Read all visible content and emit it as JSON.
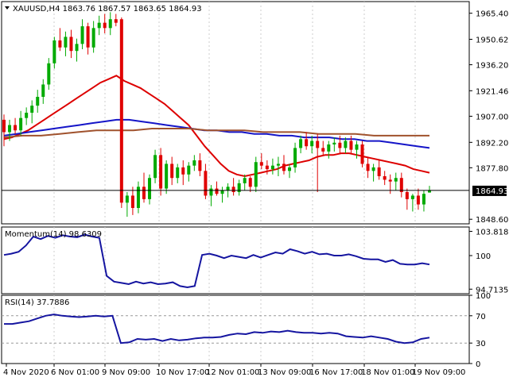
{
  "main_header": "XAUUSD,H4  1863.76 1867.57 1863.65 1864.93",
  "price_tag": "1864.93",
  "momentum_header": "Momentum(14) 98.6309",
  "rsi_header": "RSI(14) 37.7886",
  "colors": {
    "bull": "#00aa00",
    "bear": "#e00000",
    "ma_fast": "#dd0000",
    "ma_mid": "#1515c8",
    "ma_slow": "#a0522d",
    "indicator": "#1515a0",
    "grid": "#cccccc",
    "axis": "#000000"
  },
  "chart_data": [
    {
      "type": "candlestick",
      "title": "XAUUSD,H4",
      "ylim": [
        1846.0,
        1972.0
      ],
      "y_ticks": [
        "1965.40",
        "1950.62",
        "1936.20",
        "1921.46",
        "1907.00",
        "1892.20",
        "1877.80",
        "1848.60"
      ],
      "last_price": 1864.93,
      "x_ticks": [
        "4 Nov 2020",
        "6 Nov 01:00",
        "9 Nov 09:00",
        "10 Nov 17:00",
        "12 Nov 01:00",
        "13 Nov 09:00",
        "16 Nov 17:00",
        "18 Nov 01:00",
        "19 Nov 09:00"
      ],
      "candles": [
        [
          1905,
          1908,
          1890,
          1898
        ],
        [
          1898,
          1905,
          1893,
          1902
        ],
        [
          1902,
          1906,
          1897,
          1899
        ],
        [
          1899,
          1910,
          1896,
          1906
        ],
        [
          1906,
          1912,
          1902,
          1909
        ],
        [
          1909,
          1916,
          1903,
          1913
        ],
        [
          1913,
          1922,
          1909,
          1918
        ],
        [
          1918,
          1928,
          1914,
          1925
        ],
        [
          1925,
          1940,
          1922,
          1937
        ],
        [
          1937,
          1952,
          1934,
          1950
        ],
        [
          1950,
          1957,
          1944,
          1946
        ],
        [
          1946,
          1955,
          1941,
          1952
        ],
        [
          1952,
          1956,
          1940,
          1944
        ],
        [
          1944,
          1951,
          1938,
          1948
        ],
        [
          1948,
          1962,
          1945,
          1958
        ],
        [
          1958,
          1960,
          1942,
          1946
        ],
        [
          1946,
          1961,
          1943,
          1957
        ],
        [
          1957,
          1964,
          1953,
          1960
        ],
        [
          1960,
          1965,
          1954,
          1957
        ],
        [
          1957,
          1966,
          1953,
          1962
        ],
        [
          1962,
          1965,
          1958,
          1960
        ],
        [
          1962,
          1963,
          1855,
          1858
        ],
        [
          1858,
          1864,
          1850,
          1862
        ],
        [
          1862,
          1867,
          1851,
          1855
        ],
        [
          1855,
          1870,
          1852,
          1867
        ],
        [
          1867,
          1875,
          1858,
          1860
        ],
        [
          1860,
          1874,
          1857,
          1872
        ],
        [
          1872,
          1888,
          1869,
          1885
        ],
        [
          1885,
          1889,
          1862,
          1866
        ],
        [
          1866,
          1882,
          1863,
          1880
        ],
        [
          1880,
          1884,
          1868,
          1872
        ],
        [
          1872,
          1880,
          1869,
          1878
        ],
        [
          1878,
          1882,
          1868,
          1874
        ],
        [
          1874,
          1881,
          1870,
          1879
        ],
        [
          1879,
          1885,
          1876,
          1882
        ],
        [
          1882,
          1886,
          1873,
          1876
        ],
        [
          1876,
          1880,
          1860,
          1862
        ],
        [
          1862,
          1868,
          1856,
          1866
        ],
        [
          1866,
          1870,
          1862,
          1863
        ],
        [
          1863,
          1867,
          1858,
          1865
        ],
        [
          1865,
          1869,
          1861,
          1867
        ],
        [
          1867,
          1872,
          1862,
          1864
        ],
        [
          1864,
          1871,
          1862,
          1869
        ],
        [
          1869,
          1874,
          1865,
          1872
        ],
        [
          1872,
          1873,
          1864,
          1867
        ],
        [
          1867,
          1884,
          1864,
          1881
        ],
        [
          1881,
          1886,
          1877,
          1879
        ],
        [
          1879,
          1882,
          1874,
          1877
        ],
        [
          1877,
          1883,
          1874,
          1879
        ],
        [
          1879,
          1884,
          1873,
          1880
        ],
        [
          1880,
          1885,
          1874,
          1876
        ],
        [
          1876,
          1880,
          1872,
          1878
        ],
        [
          1878,
          1892,
          1875,
          1889
        ],
        [
          1889,
          1896,
          1886,
          1894
        ],
        [
          1894,
          1898,
          1888,
          1890
        ],
        [
          1890,
          1896,
          1886,
          1893
        ],
        [
          1893,
          1897,
          1864,
          1889
        ],
        [
          1889,
          1893,
          1885,
          1887
        ],
        [
          1887,
          1893,
          1883,
          1891
        ],
        [
          1891,
          1895,
          1887,
          1892
        ],
        [
          1892,
          1896,
          1886,
          1889
        ],
        [
          1889,
          1895,
          1886,
          1893
        ],
        [
          1893,
          1896,
          1886,
          1888
        ],
        [
          1888,
          1893,
          1883,
          1891
        ],
        [
          1891,
          1893,
          1878,
          1880
        ],
        [
          1880,
          1884,
          1872,
          1876
        ],
        [
          1876,
          1880,
          1870,
          1878
        ],
        [
          1878,
          1882,
          1871,
          1873
        ],
        [
          1873,
          1876,
          1868,
          1871
        ],
        [
          1871,
          1874,
          1863,
          1870
        ],
        [
          1870,
          1875,
          1865,
          1872
        ],
        [
          1872,
          1875,
          1861,
          1864
        ],
        [
          1864,
          1866,
          1854,
          1860
        ],
        [
          1860,
          1863,
          1853,
          1862
        ],
        [
          1862,
          1866,
          1854,
          1857
        ],
        [
          1857,
          1865,
          1853,
          1863
        ],
        [
          1863.76,
          1867.57,
          1863.65,
          1864.93
        ]
      ],
      "series": [
        {
          "name": "",
          "values": [
            1894,
            1895,
            1897,
            1899,
            1902,
            1905,
            1908,
            1911,
            1914,
            1917,
            1920,
            1923,
            1926,
            1928,
            1930,
            1927,
            1925,
            1923,
            1920,
            1917,
            1914,
            1910,
            1906,
            1902,
            1896,
            1890,
            1885,
            1880,
            1876,
            1874,
            1873,
            1874,
            1875,
            1876,
            1877,
            1879,
            1880,
            1881,
            1882,
            1884,
            1885,
            1885,
            1886,
            1886,
            1885,
            1884,
            1883,
            1882,
            1881,
            1880,
            1879,
            1877,
            1876,
            1875
          ]
        },
        {
          "name": "",
          "values": [
            1896,
            1897,
            1898,
            1899,
            1900,
            1901,
            1902,
            1903,
            1904,
            1905,
            1905,
            1904,
            1903,
            1902,
            1901,
            1900,
            1899,
            1899,
            1898,
            1898,
            1897,
            1897,
            1896,
            1896,
            1895,
            1895,
            1895,
            1894,
            1894,
            1893,
            1893,
            1892,
            1891,
            1890,
            1889
          ]
        },
        {
          "name": "",
          "values": [
            1895,
            1896,
            1896,
            1897,
            1898,
            1899,
            1899,
            1899,
            1900,
            1900,
            1900,
            1899,
            1899,
            1899,
            1898,
            1898,
            1898,
            1897,
            1897,
            1897,
            1896,
            1896,
            1896,
            1896
          ]
        }
      ]
    },
    {
      "type": "line",
      "title": "Momentum(14) 98.6309",
      "ylim": [
        94.0,
        104.5
      ],
      "y_ticks": [
        "103.8183",
        "100",
        "94.7135"
      ],
      "series": [
        {
          "name": "Momentum(14)",
          "values": [
            100.1,
            100.3,
            100.6,
            101.6,
            103.0,
            102.6,
            103.1,
            102.8,
            103.2,
            103.0,
            102.9,
            103.3,
            103.0,
            102.8,
            96.8,
            95.9,
            95.7,
            95.5,
            95.9,
            95.6,
            95.8,
            95.5,
            95.6,
            95.8,
            95.2,
            95.0,
            95.2,
            100.1,
            100.3,
            100.0,
            99.6,
            100.0,
            99.8,
            99.6,
            100.1,
            99.7,
            100.1,
            100.5,
            100.3,
            101.0,
            100.7,
            100.3,
            100.6,
            100.2,
            100.3,
            100.0,
            100.0,
            100.2,
            99.9,
            99.5,
            99.4,
            99.4,
            99.0,
            99.3,
            98.7,
            98.6,
            98.6,
            98.8,
            98.6
          ]
        }
      ]
    },
    {
      "type": "line",
      "title": "RSI(14) 37.7886",
      "ylim": [
        0,
        100
      ],
      "y_ticks": [
        "100",
        "70",
        "30",
        "0"
      ],
      "series": [
        {
          "name": "RSI(14)",
          "values": [
            58,
            58,
            60,
            62,
            66,
            70,
            72,
            70,
            69,
            68,
            69,
            70,
            69,
            70,
            30,
            31,
            36,
            35,
            36,
            33,
            36,
            34,
            35,
            37,
            38,
            38,
            39,
            42,
            44,
            43,
            46,
            45,
            47,
            46,
            48,
            46,
            45,
            45,
            44,
            45,
            44,
            40,
            39,
            38,
            40,
            38,
            36,
            32,
            30,
            31,
            36,
            38
          ]
        }
      ]
    }
  ]
}
